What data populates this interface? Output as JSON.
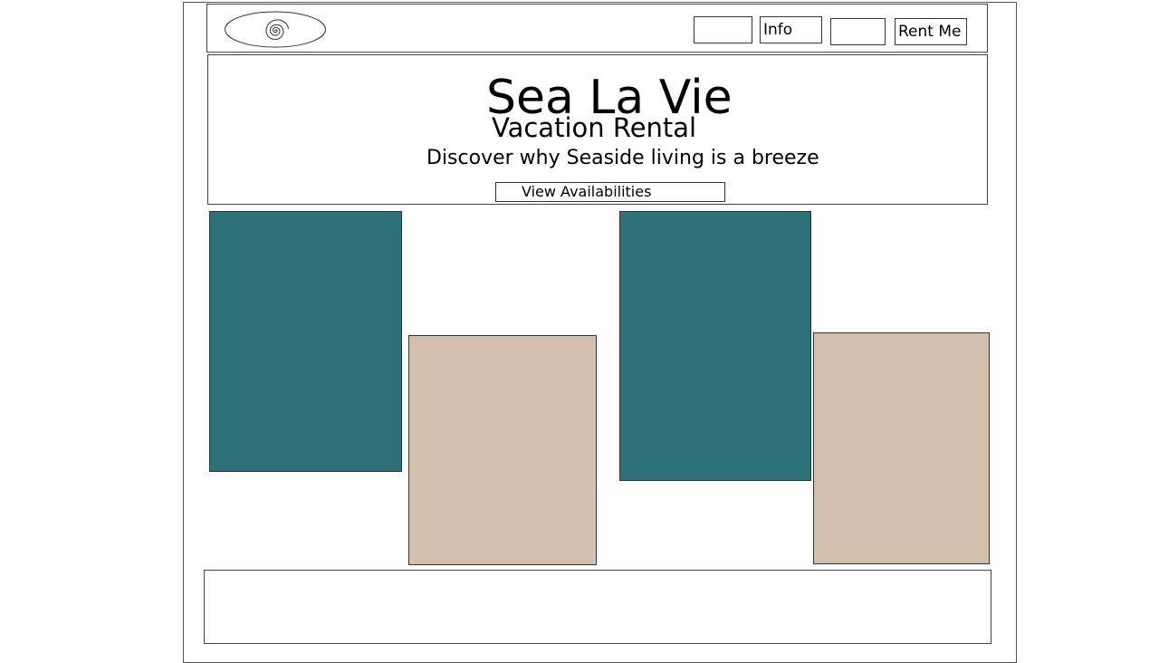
{
  "header": {
    "logo_icon": "spiral-shell-icon",
    "nav": {
      "item1_label": "",
      "item2_label": "Info",
      "item3_label": "",
      "item4_label": "Rent Me"
    }
  },
  "hero": {
    "title": "Sea La Vie",
    "subtitle": "Vacation Rental",
    "tagline": "Discover why Seaside living is a breeze",
    "cta_label": "View Availabilities"
  },
  "gallery": {
    "colors": {
      "teal": "#2d7178",
      "sand": "#d2bfac"
    }
  }
}
